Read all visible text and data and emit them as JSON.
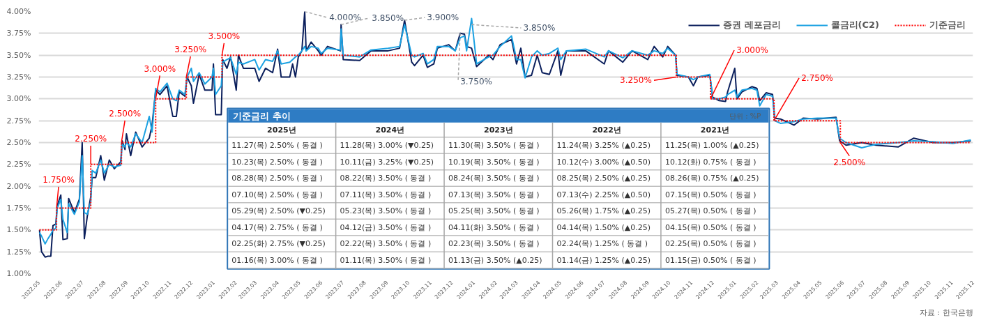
{
  "chart_data": [
    {
      "type": "line",
      "x": [
        "2022-05-02",
        "2022-05-05",
        "2022-05-10",
        "2022-05-14",
        "2022-05-18",
        "2022-05-21",
        "2022-05-25",
        "2022-05-27",
        "2022-06-01",
        "2022-06-04",
        "2022-06-10",
        "2022-06-12",
        "2022-06-20",
        "2022-06-27",
        "2022-07-01",
        "2022-07-04",
        "2022-07-08",
        "2022-07-13",
        "2022-07-15",
        "2022-07-20",
        "2022-07-27",
        "2022-08-01",
        "2022-08-08",
        "2022-08-15",
        "2022-08-24",
        "2022-08-26",
        "2022-08-30",
        "2022-09-01",
        "2022-09-07",
        "2022-09-14",
        "2022-09-23",
        "2022-10-03",
        "2022-10-07",
        "2022-10-12",
        "2022-10-18",
        "2022-10-28",
        "2022-11-05",
        "2022-11-10",
        "2022-11-14",
        "2022-11-22",
        "2022-11-25",
        "2022-12-01",
        "2022-12-04",
        "2022-12-12",
        "2022-12-20",
        "2022-12-30",
        "2023-01-01",
        "2023-01-04",
        "2023-01-12",
        "2023-01-14",
        "2023-01-20",
        "2023-01-25",
        "2023-02-02",
        "2023-02-05",
        "2023-02-12",
        "2023-02-28",
        "2023-03-06",
        "2023-03-15",
        "2023-03-25",
        "2023-04-01",
        "2023-04-06",
        "2023-04-18",
        "2023-04-22",
        "2023-04-26",
        "2023-04-30",
        "2023-05-05",
        "2023-05-09",
        "2023-05-11",
        "2023-05-18",
        "2023-05-28",
        "2023-06-01",
        "2023-06-10",
        "2023-06-28",
        "2023-06-29",
        "2023-07-02",
        "2023-07-25",
        "2023-08-10",
        "2023-09-03",
        "2023-09-19",
        "2023-09-26",
        "2023-10-06",
        "2023-10-10",
        "2023-10-22",
        "2023-10-28",
        "2023-11-06",
        "2023-11-11",
        "2023-11-27",
        "2023-12-06",
        "2023-12-13",
        "2023-12-19",
        "2023-12-22",
        "2023-12-29",
        "2024-01-05",
        "2024-01-22",
        "2024-01-28",
        "2024-02-07",
        "2024-02-23",
        "2024-03-01",
        "2024-03-07",
        "2024-03-13",
        "2024-03-22",
        "2024-03-30",
        "2024-04-06",
        "2024-04-16",
        "2024-04-28",
        "2024-05-02",
        "2024-05-10",
        "2024-06-06",
        "2024-07-02",
        "2024-07-08",
        "2024-07-28",
        "2024-08-10",
        "2024-09-01",
        "2024-09-10",
        "2024-09-22",
        "2024-09-29",
        "2024-10-10",
        "2024-10-12",
        "2024-10-28",
        "2024-11-04",
        "2024-11-10",
        "2024-11-27",
        "2024-12-01",
        "2024-12-10",
        "2024-12-19",
        "2024-12-22",
        "2025-01-01",
        "2025-01-04",
        "2025-01-11",
        "2025-01-25",
        "2025-02-01",
        "2025-02-05",
        "2025-02-14",
        "2025-02-23",
        "2025-02-26",
        "2025-03-06",
        "2025-03-25",
        "2025-04-07",
        "2025-04-27",
        "2025-05-23",
        "2025-05-28",
        "2025-06-06",
        "2025-06-28",
        "2025-07-18",
        "2025-08-18",
        "2025-09-09",
        "2025-10-06",
        "2025-11-03",
        "2025-11-28"
      ],
      "series": [
        {
          "name": "증권 레포금리",
          "color": "#0b1f5c",
          "values": [
            1.5,
            1.25,
            1.19,
            1.2,
            1.2,
            1.55,
            1.57,
            1.78,
            1.9,
            1.39,
            1.4,
            1.86,
            1.7,
            1.85,
            2.5,
            1.4,
            1.65,
            1.88,
            2.1,
            2.1,
            2.35,
            2.07,
            2.3,
            2.2,
            2.28,
            2.52,
            2.42,
            2.6,
            2.35,
            2.62,
            2.45,
            2.55,
            2.7,
            3.1,
            3.05,
            3.15,
            2.8,
            2.8,
            3.08,
            3.03,
            3.25,
            3.15,
            2.95,
            3.28,
            3.1,
            3.1,
            3.4,
            2.82,
            2.82,
            3.45,
            3.35,
            3.48,
            3.1,
            3.5,
            3.35,
            3.35,
            3.2,
            3.35,
            3.3,
            3.57,
            3.25,
            3.25,
            3.4,
            3.25,
            3.48,
            3.55,
            4.0,
            3.55,
            3.65,
            3.55,
            3.5,
            3.6,
            3.55,
            3.85,
            3.45,
            3.44,
            3.55,
            3.55,
            3.58,
            3.9,
            3.42,
            3.38,
            3.5,
            3.36,
            3.4,
            3.58,
            3.62,
            3.55,
            3.75,
            3.74,
            3.6,
            3.58,
            3.37,
            3.5,
            3.45,
            3.62,
            3.68,
            3.4,
            3.58,
            3.25,
            3.27,
            3.5,
            3.3,
            3.28,
            3.55,
            3.27,
            3.55,
            3.55,
            3.4,
            3.55,
            3.42,
            3.55,
            3.45,
            3.6,
            3.48,
            3.6,
            3.5,
            3.27,
            3.25,
            3.15,
            3.25,
            3.27,
            3.02,
            2.98,
            2.97,
            3.08,
            3.35,
            3.0,
            3.08,
            3.14,
            3.12,
            2.98,
            3.07,
            3.05,
            2.78,
            2.77,
            2.7,
            2.78,
            2.77,
            2.79,
            2.52,
            2.47,
            2.5,
            2.47,
            2.45,
            2.55,
            2.5,
            2.5,
            2.52
          ]
        },
        {
          "name": "콜금리(C2)",
          "color": "#1ba1e2",
          "values": [
            1.47,
            1.43,
            1.34,
            1.4,
            1.45,
            1.5,
            1.52,
            1.75,
            1.85,
            1.62,
            1.47,
            1.8,
            1.68,
            1.82,
            2.35,
            1.7,
            1.68,
            1.82,
            2.18,
            2.15,
            2.3,
            2.15,
            2.25,
            2.22,
            2.24,
            2.48,
            2.45,
            2.5,
            2.45,
            2.6,
            2.5,
            2.8,
            2.62,
            3.12,
            3.08,
            3.18,
            3.0,
            2.98,
            3.1,
            3.05,
            3.25,
            3.35,
            3.2,
            3.3,
            3.17,
            3.25,
            3.35,
            3.05,
            3.15,
            3.42,
            3.45,
            3.47,
            3.28,
            3.42,
            3.4,
            3.45,
            3.33,
            3.45,
            3.43,
            3.55,
            3.4,
            3.42,
            3.45,
            3.48,
            3.5,
            3.55,
            3.6,
            3.55,
            3.6,
            3.58,
            3.52,
            3.58,
            3.56,
            3.8,
            3.5,
            3.48,
            3.56,
            3.58,
            3.6,
            3.85,
            3.5,
            3.48,
            3.52,
            3.4,
            3.45,
            3.6,
            3.6,
            3.55,
            3.7,
            3.72,
            3.55,
            3.92,
            3.4,
            3.48,
            3.5,
            3.6,
            3.72,
            3.45,
            3.45,
            3.24,
            3.48,
            3.55,
            3.5,
            3.52,
            3.58,
            3.45,
            3.55,
            3.57,
            3.48,
            3.55,
            3.47,
            3.55,
            3.5,
            3.55,
            3.52,
            3.58,
            3.5,
            3.28,
            3.25,
            3.22,
            3.25,
            3.28,
            3.0,
            3.0,
            3.02,
            3.05,
            3.1,
            3.02,
            3.1,
            3.12,
            3.1,
            2.92,
            3.05,
            3.03,
            2.75,
            2.72,
            2.74,
            2.77,
            2.78,
            2.78,
            2.55,
            2.5,
            2.44,
            2.48,
            2.5,
            2.52,
            2.51,
            2.49,
            2.53
          ]
        },
        {
          "name": "기준금리",
          "type": "step",
          "line_style": "dotted",
          "color": "#ff0000",
          "x": [
            "2022-05-02",
            "2022-05-26",
            "2022-07-13",
            "2022-08-25",
            "2022-10-12",
            "2022-11-24",
            "2023-01-13",
            "2024-10-11",
            "2024-11-28",
            "2025-02-25",
            "2025-05-29",
            "2025-11-28"
          ],
          "values": [
            1.5,
            1.75,
            2.25,
            2.5,
            3.0,
            3.25,
            3.5,
            3.25,
            3.0,
            2.75,
            2.5,
            2.5
          ]
        }
      ],
      "xlim": [
        "2022-05-01",
        "2025-12-01"
      ],
      "xticks": [
        {
          "value": "2022-05",
          "label": "2022.05"
        },
        {
          "value": "2022-06",
          "label": "2022.06"
        },
        {
          "value": "2022-07",
          "label": "2022.07"
        },
        {
          "value": "2022-08",
          "label": "2022.08"
        },
        {
          "value": "2022-09",
          "label": "2022.09"
        },
        {
          "value": "2022-10",
          "label": "2022.10"
        },
        {
          "value": "2022-11",
          "label": "2022.11"
        },
        {
          "value": "2022-12",
          "label": "2022.12"
        },
        {
          "value": "2023-01",
          "label": "2023.01"
        },
        {
          "value": "2023-02",
          "label": "2023.02"
        },
        {
          "value": "2023-03",
          "label": "2023.03"
        },
        {
          "value": "2023-04",
          "label": "2023.04"
        },
        {
          "value": "2023-05",
          "label": "2023.05"
        },
        {
          "value": "2023-06",
          "label": "2023.06"
        },
        {
          "value": "2023-07",
          "label": "2023.07"
        },
        {
          "value": "2023-08",
          "label": "2023.08"
        },
        {
          "value": "2023-09",
          "label": "2023.09"
        },
        {
          "value": "2023-10",
          "label": "2023.10"
        },
        {
          "value": "2023-11",
          "label": "2023.11"
        },
        {
          "value": "2023-12",
          "label": "2023.12"
        },
        {
          "value": "2024-01",
          "label": "2024.01"
        },
        {
          "value": "2024-02",
          "label": "2024.02"
        },
        {
          "value": "2024-03",
          "label": "2024.03"
        },
        {
          "value": "2024-04",
          "label": "2024.04"
        },
        {
          "value": "2024-05",
          "label": "2024.05"
        },
        {
          "value": "2024-06",
          "label": "2024.06"
        },
        {
          "value": "2024-07",
          "label": "2024.07"
        },
        {
          "value": "2024-08",
          "label": "2024.08"
        },
        {
          "value": "2024-09",
          "label": "2024.09"
        },
        {
          "value": "2024-10",
          "label": "2024.10"
        },
        {
          "value": "2024-11",
          "label": "2024.11"
        },
        {
          "value": "2024-12",
          "label": "2024.12"
        },
        {
          "value": "2025-01",
          "label": "2025.01"
        },
        {
          "value": "2025-02",
          "label": "2025.02"
        },
        {
          "value": "2025-03",
          "label": "2025.03"
        },
        {
          "value": "2025-04",
          "label": "2025.04"
        },
        {
          "value": "2025-05",
          "label": "2025.05"
        },
        {
          "value": "2025-06",
          "label": "2025.06"
        },
        {
          "value": "2025-07",
          "label": "2025.07"
        },
        {
          "value": "2025-08",
          "label": "2025.08"
        },
        {
          "value": "2025-09",
          "label": "2025.09"
        },
        {
          "value": "2025-10",
          "label": "2025.10"
        },
        {
          "value": "2025-11",
          "label": "2025.11"
        },
        {
          "value": "2025-12",
          "label": "2025.12"
        }
      ],
      "ylim": [
        1.0,
        4.0
      ],
      "yticks": [
        {
          "value": 1.0,
          "label": "1.00%"
        },
        {
          "value": 1.25,
          "label": "1.25%"
        },
        {
          "value": 1.5,
          "label": "1.50%"
        },
        {
          "value": 1.75,
          "label": "1.75%"
        },
        {
          "value": 2.0,
          "label": "2.00%"
        },
        {
          "value": 2.25,
          "label": "2.25%"
        },
        {
          "value": 2.5,
          "label": "2.50%"
        },
        {
          "value": 2.75,
          "label": "2.75%"
        },
        {
          "value": 3.0,
          "label": "3.00%"
        },
        {
          "value": 3.25,
          "label": "3.25%"
        },
        {
          "value": 3.5,
          "label": "3.50%"
        },
        {
          "value": 3.75,
          "label": "3.75%"
        },
        {
          "value": 4.0,
          "label": "4.00%"
        }
      ],
      "grid": "y",
      "legend": "top right",
      "annotations": [
        {
          "text": "1.750%",
          "x": "2022-05-26",
          "y": 1.75
        },
        {
          "text": "2.250%",
          "x": "2022-07-13",
          "y": 2.25
        },
        {
          "text": "2.500%",
          "x": "2022-08-25",
          "y": 2.5
        },
        {
          "text": "3.000%",
          "x": "2022-10-12",
          "y": 3.0
        },
        {
          "text": "3.250%",
          "x": "2022-11-24",
          "y": 3.25
        },
        {
          "text": "3.500%",
          "x": "2023-01-13",
          "y": 3.5
        },
        {
          "text": "3.250%",
          "x": "2024-10-11",
          "y": 3.25
        },
        {
          "text": "3.000%",
          "x": "2024-11-28",
          "y": 3.0
        },
        {
          "text": "2.750%",
          "x": "2025-02-25",
          "y": 2.75
        },
        {
          "text": "2.500%",
          "x": "2025-05-29",
          "y": 2.5
        },
        {
          "text": "4.000%",
          "x": "2023-05-09",
          "y": 4.0
        },
        {
          "text": "3.850%",
          "x": "2023-06-29",
          "y": 3.85
        },
        {
          "text": "3.900%",
          "x": "2023-09-26",
          "y": 3.9
        },
        {
          "text": "3.850%",
          "x": "2023-12-29",
          "y": 3.85
        },
        {
          "text": "3.750%",
          "x": "2023-12-13",
          "y": 3.75
        },
        "기준금리 추이",
        "단위 : %P",
        "2025년",
        "2024년",
        "2023년",
        "2022년",
        "2021년",
        "11.27(목)  2.50% ( 동결 )",
        "11.28(목)  3.00% (▼0.25)",
        "11.30(목)  3.50% ( 동결 )",
        "11.24(목)  3.25% (▲0.25)",
        "11.25(목)  1.00% (▲0.25)",
        "10.23(목)  2.50% ( 동결 )",
        "10.11(금)  3.25% (▼0.25)",
        "10.19(목)  3.50% ( 동결 )",
        "10.12(수)  3.00% (▲0.50)",
        "10.12(화)  0.75% ( 동결 )",
        "08.28(목)  2.50% ( 동결 )",
        "08.22(목)  3.50% ( 동결 )",
        "08.24(목)  3.50% ( 동결 )",
        "08.25(목)  2.50% (▲0.25)",
        "08.26(목)  0.75% (▲0.25)",
        "07.10(목)  2.50% ( 동결 )",
        "07.11(목)  3.50% ( 동결 )",
        "07.13(목)  3.50% ( 동결 )",
        "07.13(수)  2.25% (▲0.50)",
        "07.15(목)  0.50% ( 동결 )",
        "05.29(목)  2.50% (▼0.25)",
        "05.23(목)  3.50% ( 동결 )",
        "05.25(목)  3.50% ( 동결 )",
        "05.26(목)  1.75% (▲0.25)",
        "05.27(목)  0.50% ( 동결 )",
        "04.17(목)  2.75% ( 동결 )",
        "04.12(금)  3.50% ( 동결 )",
        "04.11(화)  3.50% ( 동결 )",
        "04.14(목)  1.50% (▲0.25)",
        "04.15(목)  0.50% ( 동결 )",
        "02.25(화)  2.75% (▼0.25)",
        "02.22(목)  3.50% ( 동결 )",
        "02.23(목)  3.50% ( 동결 )",
        "02.24(목)  1.25% ( 동결 )",
        "02.25(목)  0.50% ( 동결 )",
        "01.16(목)  3.00% ( 동결 )",
        "01.11(목)  3.50% ( 동결 )",
        "01.13(금)  3.50% (▲0.25)",
        "01.14(금)  1.25% (▲0.25)",
        "01.15(금)  0.50% ( 동결 )",
        "자료 : 한국은행"
      ]
    }
  ]
}
